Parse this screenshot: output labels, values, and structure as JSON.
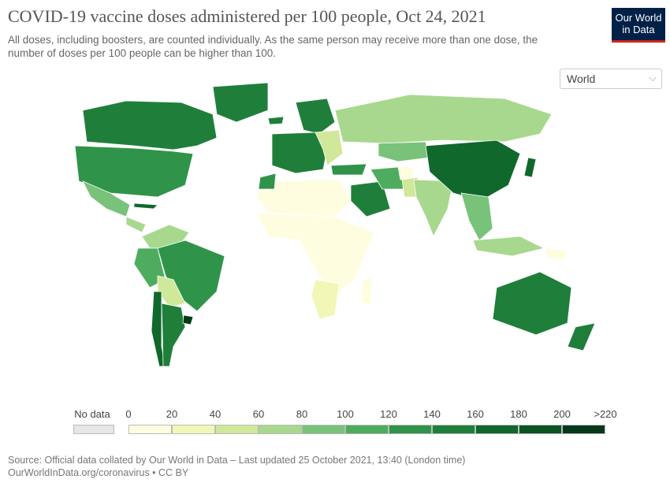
{
  "header": {
    "title": "COVID-19 vaccine doses administered per 100 people, Oct 24, 2021",
    "subtitle": "All doses, including boosters, are counted individually. As the same person may receive more than one dose, the number of doses per 100 people can be higher than 100.",
    "logo_line1": "Our World",
    "logo_line2": "in Data"
  },
  "region_select": {
    "value": "World"
  },
  "legend": {
    "no_data_label": "No data",
    "ticks": [
      "0",
      "20",
      "40",
      "60",
      "80",
      "100",
      "120",
      "140",
      "160",
      "180",
      "200",
      ">220"
    ],
    "colors": [
      "#fffde0",
      "#f2f7b8",
      "#d0e89a",
      "#a7d88e",
      "#78c27a",
      "#4eac5e",
      "#2f944a",
      "#1f7f3a",
      "#10682c",
      "#0a5422",
      "#05391a"
    ],
    "no_data_color": "#e6e6e6"
  },
  "footer": {
    "source": "Source: Official data collated by Our World in Data – Last updated 25 October 2021, 13:40 (London time)",
    "link": "OurWorldInData.org/coronavirus • CC BY"
  },
  "regions": [
    {
      "name": "Canada",
      "color": "#1f7f3a"
    },
    {
      "name": "USA",
      "color": "#2f944a"
    },
    {
      "name": "Mexico",
      "color": "#78c27a"
    },
    {
      "name": "Central America",
      "color": "#a7d88e"
    },
    {
      "name": "Cuba",
      "color": "#10682c"
    },
    {
      "name": "Colombia/Venezuela",
      "color": "#a7d88e"
    },
    {
      "name": "Ecuador/Peru",
      "color": "#4eac5e"
    },
    {
      "name": "Brazil",
      "color": "#2f944a"
    },
    {
      "name": "Bolivia/Paraguay",
      "color": "#d0e89a"
    },
    {
      "name": "Argentina",
      "color": "#1f7f3a"
    },
    {
      "name": "Chile",
      "color": "#10682c"
    },
    {
      "name": "Uruguay",
      "color": "#05391a"
    },
    {
      "name": "Greenland",
      "color": "#1f7f3a"
    },
    {
      "name": "Iceland",
      "color": "#1f7f3a"
    },
    {
      "name": "Scandinavia",
      "color": "#1f7f3a"
    },
    {
      "name": "Western Europe",
      "color": "#1f7f3a"
    },
    {
      "name": "Eastern Europe",
      "color": "#d0e89a"
    },
    {
      "name": "Russia",
      "color": "#a7d88e"
    },
    {
      "name": "Kazakhstan",
      "color": "#78c27a"
    },
    {
      "name": "Turkey",
      "color": "#2f944a"
    },
    {
      "name": "Saudi Arabia",
      "color": "#1f7f3a"
    },
    {
      "name": "Iran",
      "color": "#4eac5e"
    },
    {
      "name": "Afghanistan",
      "color": "#fffde0"
    },
    {
      "name": "Pakistan",
      "color": "#d0e89a"
    },
    {
      "name": "India",
      "color": "#a7d88e"
    },
    {
      "name": "Mongolia/China",
      "color": "#10682c"
    },
    {
      "name": "Japan",
      "color": "#10682c"
    },
    {
      "name": "Southeast Asia",
      "color": "#78c27a"
    },
    {
      "name": "Indonesia",
      "color": "#a7d88e"
    },
    {
      "name": "Papua New Guinea",
      "color": "#fffde0"
    },
    {
      "name": "North Africa",
      "color": "#fffde0"
    },
    {
      "name": "Morocco",
      "color": "#2f944a"
    },
    {
      "name": "Sub-Saharan Africa",
      "color": "#fffde0"
    },
    {
      "name": "South Africa",
      "color": "#f2f7b8"
    },
    {
      "name": "Madagascar",
      "color": "#fffde0"
    },
    {
      "name": "Australia",
      "color": "#1f7f3a"
    },
    {
      "name": "New Zealand",
      "color": "#1f7f3a"
    }
  ]
}
